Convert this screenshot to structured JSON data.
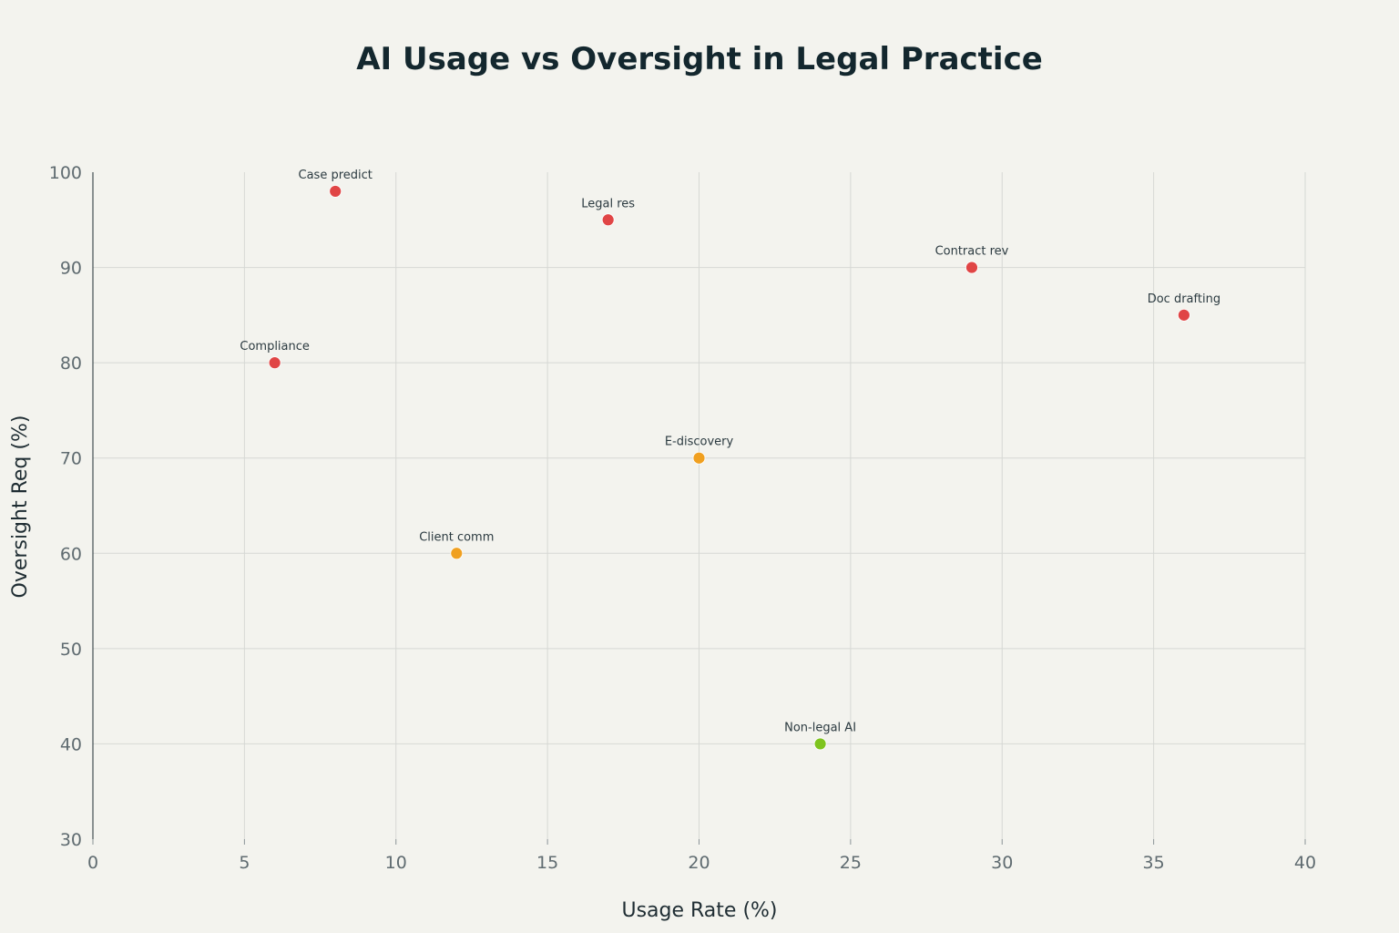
{
  "chart_data": {
    "type": "scatter",
    "title": "AI Usage vs Oversight in Legal Practice",
    "xlabel": "Usage Rate (%)",
    "ylabel": "Oversight Req (%)",
    "xlim": [
      0,
      40
    ],
    "ylim": [
      30,
      100
    ],
    "xticks": [
      "0",
      "5",
      "10",
      "15",
      "20",
      "25",
      "30",
      "35",
      "40"
    ],
    "yticks": [
      "30",
      "40",
      "50",
      "60",
      "70",
      "80",
      "90",
      "100"
    ],
    "grid": true,
    "points": [
      {
        "label": "Case predict",
        "x": 8,
        "y": 98,
        "color": "#e04545"
      },
      {
        "label": "Legal res",
        "x": 17,
        "y": 95,
        "color": "#e04545"
      },
      {
        "label": "Contract rev",
        "x": 29,
        "y": 90,
        "color": "#e04545"
      },
      {
        "label": "Doc drafting",
        "x": 36,
        "y": 85,
        "color": "#e04545"
      },
      {
        "label": "Compliance",
        "x": 6,
        "y": 80,
        "color": "#e04545"
      },
      {
        "label": "E-discovery",
        "x": 20,
        "y": 70,
        "color": "#f0a020"
      },
      {
        "label": "Client comm",
        "x": 12,
        "y": 60,
        "color": "#f0a020"
      },
      {
        "label": "Non-legal AI",
        "x": 24,
        "y": 40,
        "color": "#7ec41e"
      }
    ]
  }
}
